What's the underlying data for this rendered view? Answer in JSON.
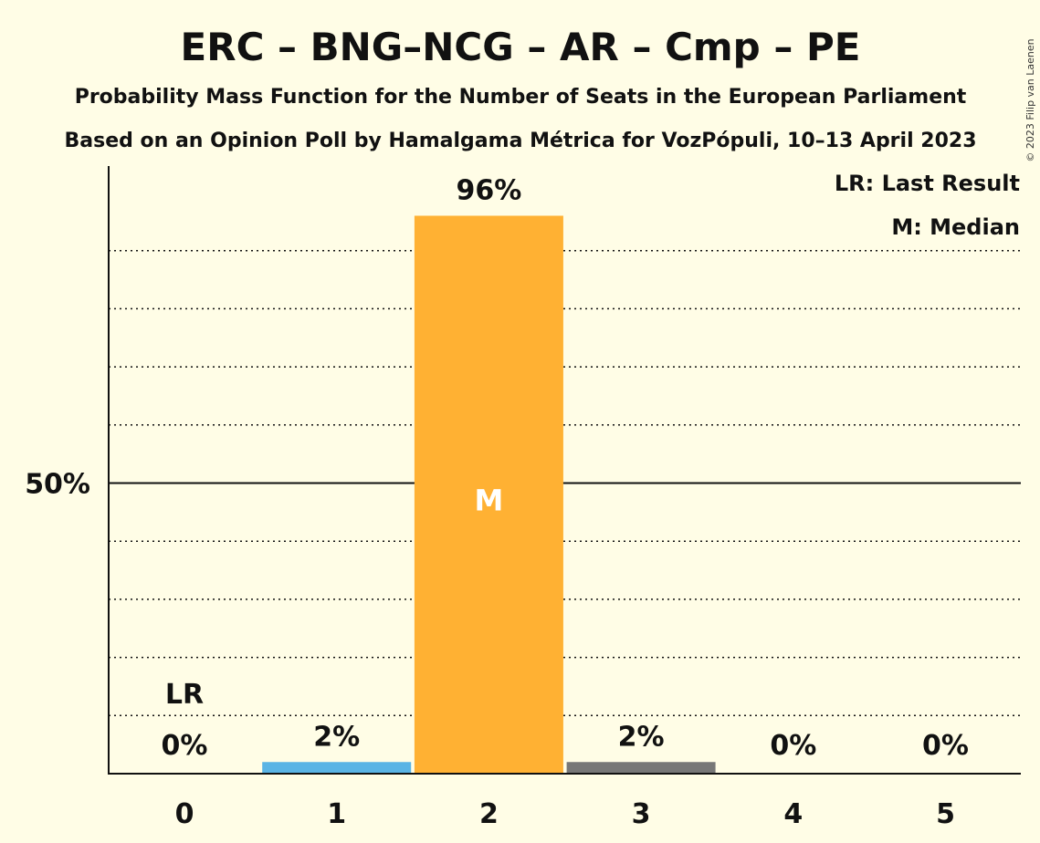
{
  "chart_data": {
    "type": "bar",
    "title": "ERC – BNG–NCG – AR – Cmp – PE",
    "subtitle": "Probability Mass Function for the Number of Seats in the European Parliament",
    "subtitle2": "Based on an Opinion Poll by Hamalgama Métrica for VozPópuli, 10–13 April 2023",
    "copyright": "© 2023 Filip van Laenen",
    "categories": [
      "0",
      "1",
      "2",
      "3",
      "4",
      "5"
    ],
    "values": [
      0,
      2,
      96,
      2,
      0,
      0
    ],
    "value_labels": [
      "0%",
      "2%",
      "96%",
      "2%",
      "0%",
      "0%"
    ],
    "bar_colors": [
      "#5AB4E5",
      "#5AB4E5",
      "#FFB133",
      "#777777",
      "#5AB4E5",
      "#5AB4E5"
    ],
    "ylim": [
      0,
      100
    ],
    "y_tick_label": "50%",
    "y_tick_value": 50,
    "gridlines": [
      10,
      20,
      30,
      40,
      60,
      70,
      80,
      90
    ],
    "last_result_category": "0",
    "last_result_marker": "LR",
    "median_category": "2",
    "median_marker": "M",
    "legend": [
      "LR: Last Result",
      "M: Median"
    ],
    "legend_position": "top-right"
  }
}
